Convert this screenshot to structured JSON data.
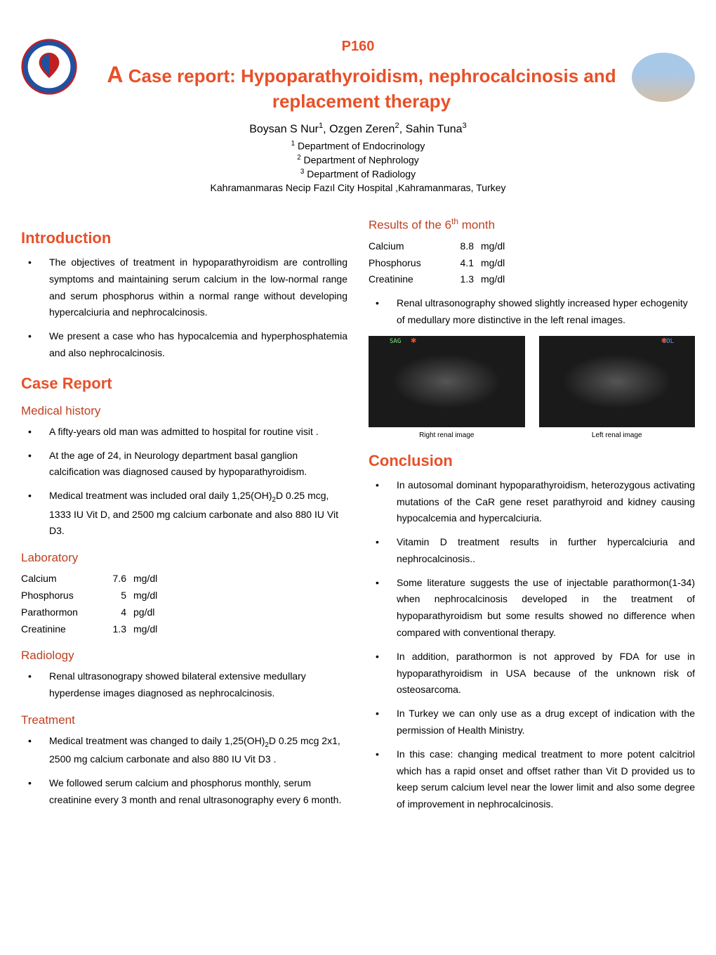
{
  "header": {
    "poster_number": "P160",
    "title_prefix": "A",
    "title": "Case report: Hypoparathyroidism, nephrocalcinosis and replacement   therapy",
    "authors_html": "Boysan S Nur<sup>1</sup>, Ozgen Zeren<sup>2</sup>, Sahin Tuna<sup>3</sup>",
    "aff1_html": "<sup>1</sup> Department of Endocrinology",
    "aff2_html": "<sup>2</sup> Department of Nephrology",
    "aff3_html": "<sup>3</sup> Department of Radiology",
    "institution": "Kahramanmaras Necip Fazıl City Hospital ,Kahramanmaras, Turkey"
  },
  "colors": {
    "accent_red": "#e85028",
    "dark_red": "#c04020",
    "text": "#000000",
    "bg": "#ffffff"
  },
  "left": {
    "intro_title": "Introduction",
    "intro_bullets": [
      "The objectives of  treatment in hypoparathyroidism are controlling symptoms and maintaining serum calcium in the low-normal range and serum phosphorus within a normal range without developing hypercalciuria and nephrocalcinosis.",
      " We present a case  who has hypocalcemia and hyperphosphatemia and also nephrocalcinosis."
    ],
    "case_title": "Case Report",
    "medhist_title": "Medical history",
    "medhist_bullets_html": [
      "A fifty-years old man was admitted to hospital for  routine visit .",
      "At the age of 24, in Neurology department basal ganglion calcification was diagnosed caused by hypoparathyroidism.",
      "Medical treatment  was included oral  daily 1,25(OH)<sub>2</sub>D 0.25 mcg, 1333 IU Vit D, and 2500 mg calcium carbonate and also 880 IU Vit D3."
    ],
    "lab_title": "Laboratory",
    "lab_rows": [
      {
        "label": "Calcium",
        "value": "7.6",
        "unit": "mg/dl"
      },
      {
        "label": "Phosphorus",
        "value": "5",
        "unit": "mg/dl"
      },
      {
        "label": "Parathormon",
        "value": "4",
        "unit": "pg/dl"
      },
      {
        "label": "Creatinine",
        "value": "1.3",
        "unit": "mg/dl"
      }
    ],
    "radiology_title": "Radiology",
    "radiology_bullets": [
      "Renal ultrasonograpy showed bilateral extensive medullary hyperdense images diagnosed as nephrocalcinosis."
    ],
    "treatment_title": "Treatment",
    "treatment_bullets_html": [
      "Medical treatment was changed to daily  1,25(OH)<sub>2</sub>D 0.25 mcg 2x1, 2500 mg calcium carbonate and also 880 IU Vit D3 .",
      "We followed serum calcium and phosphorus monthly, serum creatinine every 3 month and renal ultrasonography every 6 month."
    ]
  },
  "right": {
    "results_title_html": "Results of the 6<sup>th</sup> month",
    "results_rows": [
      {
        "label": "Calcium",
        "value": "8.8",
        "unit": "mg/dl"
      },
      {
        "label": "Phosphorus",
        "value": "4.1",
        "unit": "mg/dl"
      },
      {
        "label": "Creatinine",
        "value": "1.3",
        "unit": "mg/dl"
      }
    ],
    "results_bullets": [
      "Renal ultrasonography showed  slightly increased hyper echogenity of medullary more distinctive in the left renal images."
    ],
    "img_right_label_top": "SAG",
    "img_left_label_top": "SOL",
    "img_caption_right": "Right renal image",
    "img_caption_left": "Left renal image",
    "conclusion_title": "Conclusion",
    "conclusion_bullets": [
      "In autosomal dominant hypoparathyroidism, heterozygous activating mutations of the CaR gene reset parathyroid and kidney causing hypocalcemia and hypercalciuria.",
      "Vitamin D treatment  results in further hypercalciuria and nephrocalcinosis..",
      "Some literature suggests the use of injectable parathormon(1-34) when nephrocalcinosis developed in the treatment of hypoparathyroidism but some results showed no difference when compared with conventional therapy.",
      "In addition, parathormon is not approved by FDA for use in hypoparathyroidism in USA because of the unknown risk of osteosarcoma.",
      " In Turkey we can only use as a drug except of indication with the permission of Health Ministry.",
      "In this case: changing medical treatment to more potent calcitriol which has a rapid onset and offset rather than Vit D provided us to keep serum calcium level near the lower limit and also some degree of improvement in nephrocalcinosis."
    ]
  }
}
